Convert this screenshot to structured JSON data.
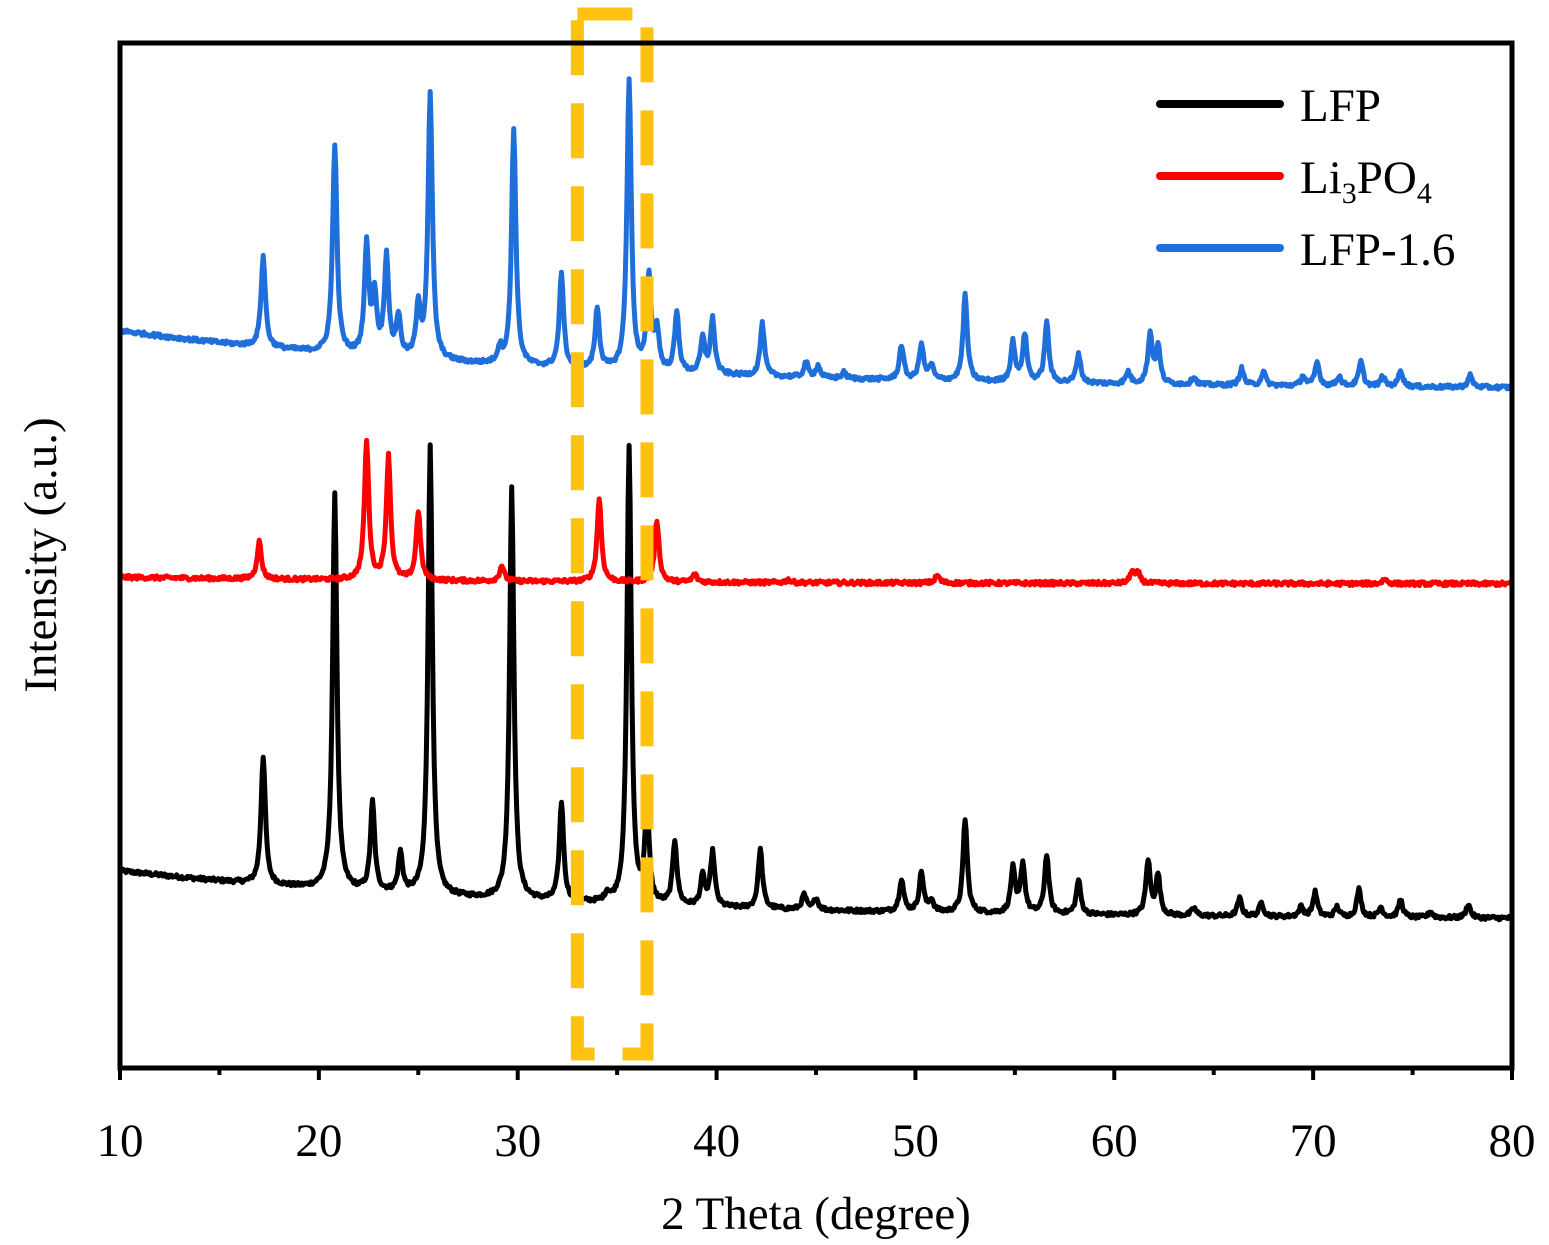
{
  "chart_data": {
    "type": "line",
    "title": "",
    "xlabel": "2 Theta (degree)",
    "ylabel": "Intensity (a.u.)",
    "xlim": [
      10,
      80
    ],
    "ylim": [
      0,
      1040
    ],
    "xticks": [
      10,
      20,
      30,
      40,
      50,
      60,
      70,
      80
    ],
    "xtick_labels": [
      "10",
      "20",
      "30",
      "40",
      "50",
      "60",
      "70",
      "80"
    ],
    "y_ticks_shown": false,
    "grid": false,
    "legend_position": "top-right",
    "highlight_region": {
      "x": [
        33.0,
        36.5
      ],
      "color": "#FFC20E",
      "style": "dashed"
    },
    "series": [
      {
        "name": "LFP",
        "legend_label": "LFP",
        "color": "#000000",
        "offset": 0,
        "baseline_start": 200,
        "baseline_end": 150,
        "peaks": [
          [
            17.2,
            130
          ],
          [
            20.8,
            400
          ],
          [
            22.7,
            90
          ],
          [
            24.1,
            40
          ],
          [
            25.6,
            455
          ],
          [
            29.7,
            420
          ],
          [
            32.2,
            100
          ],
          [
            34.5,
            8
          ],
          [
            35.6,
            465
          ],
          [
            36.5,
            95
          ],
          [
            37.9,
            65
          ],
          [
            39.3,
            30
          ],
          [
            39.8,
            55
          ],
          [
            42.2,
            60
          ],
          [
            44.4,
            15
          ],
          [
            45.0,
            12
          ],
          [
            49.3,
            33
          ],
          [
            50.3,
            40
          ],
          [
            50.8,
            12
          ],
          [
            52.5,
            95
          ],
          [
            54.9,
            45
          ],
          [
            55.4,
            50
          ],
          [
            56.6,
            60
          ],
          [
            58.2,
            35
          ],
          [
            61.7,
            55
          ],
          [
            62.2,
            40
          ],
          [
            64.0,
            8
          ],
          [
            66.3,
            18
          ],
          [
            67.4,
            14
          ],
          [
            69.4,
            10
          ],
          [
            70.1,
            25
          ],
          [
            71.2,
            10
          ],
          [
            72.3,
            28
          ],
          [
            73.4,
            10
          ],
          [
            74.4,
            18
          ],
          [
            75.9,
            6
          ],
          [
            77.8,
            14
          ]
        ]
      },
      {
        "name": "Li3PO4",
        "legend_label": "Li3PO4",
        "color": "#FF0000",
        "offset": 348,
        "baseline_start": 150,
        "baseline_end": 143,
        "peaks": [
          [
            17.0,
            38
          ],
          [
            22.4,
            140
          ],
          [
            23.5,
            125
          ],
          [
            25.0,
            70
          ],
          [
            29.2,
            16
          ],
          [
            34.1,
            85
          ],
          [
            37.0,
            63
          ],
          [
            38.9,
            8
          ],
          [
            43.6,
            3
          ],
          [
            51.1,
            8
          ],
          [
            60.9,
            12
          ],
          [
            61.2,
            10
          ],
          [
            73.6,
            5
          ]
        ]
      },
      {
        "name": "LFP-1.6",
        "legend_label": "LFP-1.6",
        "color": "#1F6FDB",
        "offset": 598,
        "baseline_start": 150,
        "baseline_end": 90,
        "peaks": [
          [
            17.2,
            92
          ],
          [
            20.8,
            212
          ],
          [
            22.4,
            110
          ],
          [
            22.8,
            60
          ],
          [
            23.4,
            100
          ],
          [
            24.0,
            40
          ],
          [
            25.0,
            50
          ],
          [
            25.6,
            268
          ],
          [
            29.1,
            15
          ],
          [
            29.8,
            240
          ],
          [
            32.2,
            95
          ],
          [
            34.0,
            62
          ],
          [
            35.6,
            295
          ],
          [
            36.6,
            95
          ],
          [
            37.0,
            40
          ],
          [
            38.0,
            60
          ],
          [
            39.3,
            35
          ],
          [
            39.8,
            55
          ],
          [
            42.3,
            53
          ],
          [
            44.5,
            15
          ],
          [
            45.1,
            12
          ],
          [
            46.4,
            6
          ],
          [
            49.3,
            35
          ],
          [
            50.3,
            37
          ],
          [
            50.8,
            15
          ],
          [
            52.5,
            87
          ],
          [
            54.9,
            40
          ],
          [
            55.5,
            48
          ],
          [
            56.6,
            60
          ],
          [
            58.2,
            30
          ],
          [
            60.7,
            12
          ],
          [
            61.8,
            50
          ],
          [
            62.2,
            38
          ],
          [
            64.0,
            8
          ],
          [
            66.4,
            17
          ],
          [
            67.5,
            14
          ],
          [
            69.5,
            10
          ],
          [
            70.2,
            24
          ],
          [
            71.3,
            10
          ],
          [
            72.4,
            25
          ],
          [
            73.5,
            10
          ],
          [
            74.4,
            17
          ],
          [
            77.9,
            12
          ]
        ]
      }
    ]
  }
}
